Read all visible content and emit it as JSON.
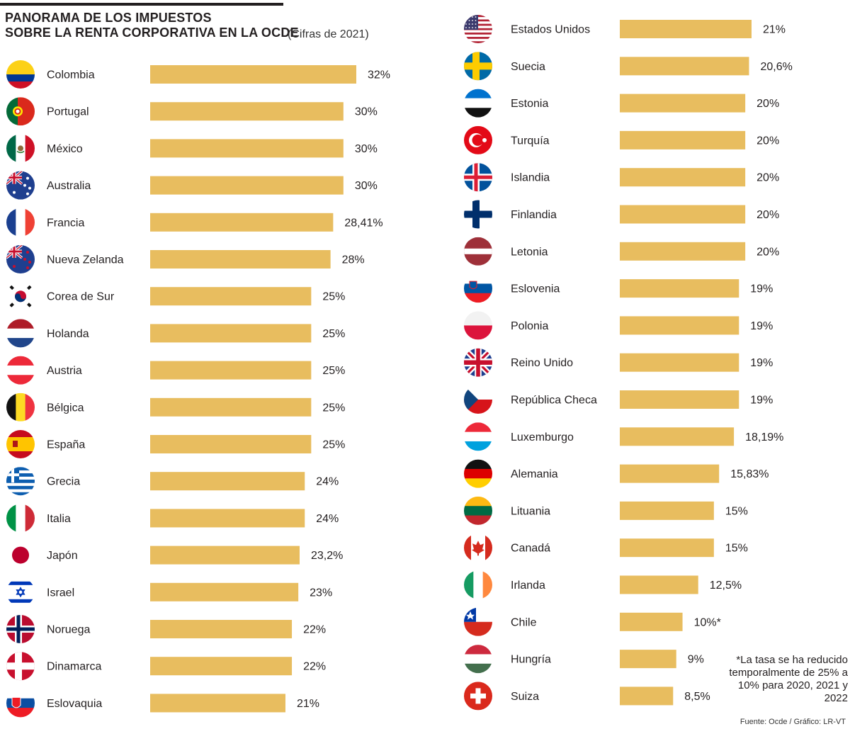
{
  "title_lines": [
    "PANORAMA DE LOS IMPUESTOS",
    "SOBRE LA RENTA CORPORATIVA EN LA OCDE"
  ],
  "subtitle": "(Cifras de 2021)",
  "note": "*La tasa se ha reducido temporalmente de 25% a 10% para 2020, 2021 y 2022",
  "source": "Fuente: Ocde  / Gráfico: LR-VT",
  "colors": {
    "bar": "#e8bd5f",
    "text": "#231f20"
  },
  "chart_data": {
    "type": "bar",
    "orientation": "horizontal",
    "title": "PANORAMA DE LOS IMPUESTOS SOBRE LA RENTA CORPORATIVA EN LA OCDE",
    "subtitle": "(Cifras de 2021)",
    "xlabel": "",
    "ylabel": "",
    "unit": "%",
    "grid": false,
    "legend": "none",
    "xlim": [
      0,
      32
    ],
    "columns": [
      {
        "categories": [
          "Colombia",
          "Portugal",
          "México",
          "Australia",
          "Francia",
          "Nueva Zelanda",
          "Corea de Sur",
          "Holanda",
          "Austria",
          "Bélgica",
          "España",
          "Grecia",
          "Italia",
          "Japón",
          "Israel",
          "Noruega",
          "Dinamarca",
          "Eslovaquia"
        ],
        "values": [
          32,
          30,
          30,
          30,
          28.41,
          28,
          25,
          25,
          25,
          25,
          25,
          24,
          24,
          23.2,
          23,
          22,
          22,
          21
        ],
        "labels": [
          "32%",
          "30%",
          "30%",
          "30%",
          "28,41%",
          "28%",
          "25%",
          "25%",
          "25%",
          "25%",
          "25%",
          "24%",
          "24%",
          "23,2%",
          "23%",
          "22%",
          "22%",
          "21%"
        ],
        "flag_icons": [
          "colombia-flag-icon",
          "portugal-flag-icon",
          "mexico-flag-icon",
          "australia-flag-icon",
          "france-flag-icon",
          "new-zealand-flag-icon",
          "south-korea-flag-icon",
          "netherlands-flag-icon",
          "austria-flag-icon",
          "belgium-flag-icon",
          "spain-flag-icon",
          "greece-flag-icon",
          "italy-flag-icon",
          "japan-flag-icon",
          "israel-flag-icon",
          "norway-flag-icon",
          "denmark-flag-icon",
          "slovakia-flag-icon"
        ]
      },
      {
        "categories": [
          "Estados Unidos",
          "Suecia",
          "Estonia",
          "Turquía",
          "Islandia",
          "Finlandia",
          "Letonia",
          "Eslovenia",
          "Polonia",
          "Reino Unido",
          "República Checa",
          "Luxemburgo",
          "Alemania",
          "Lituania",
          "Canadá",
          "Irlanda",
          "Chile",
          "Hungría",
          "Suiza"
        ],
        "values": [
          21,
          20.6,
          20,
          20,
          20,
          20,
          20,
          19,
          19,
          19,
          19,
          18.19,
          15.83,
          15,
          15,
          12.5,
          10,
          9,
          8.5
        ],
        "labels": [
          "21%",
          "20,6%",
          "20%",
          "20%",
          "20%",
          "20%",
          "20%",
          "19%",
          "19%",
          "19%",
          "19%",
          "18,19%",
          "15,83%",
          "15%",
          "15%",
          "12,5%",
          "10%*",
          "9%",
          "8,5%"
        ],
        "flag_icons": [
          "usa-flag-icon",
          "sweden-flag-icon",
          "estonia-flag-icon",
          "turkey-flag-icon",
          "iceland-flag-icon",
          "finland-flag-icon",
          "latvia-flag-icon",
          "slovenia-flag-icon",
          "poland-flag-icon",
          "uk-flag-icon",
          "czech-flag-icon",
          "luxembourg-flag-icon",
          "germany-flag-icon",
          "lithuania-flag-icon",
          "canada-flag-icon",
          "ireland-flag-icon",
          "chile-flag-icon",
          "hungary-flag-icon",
          "switzerland-flag-icon"
        ]
      }
    ]
  }
}
